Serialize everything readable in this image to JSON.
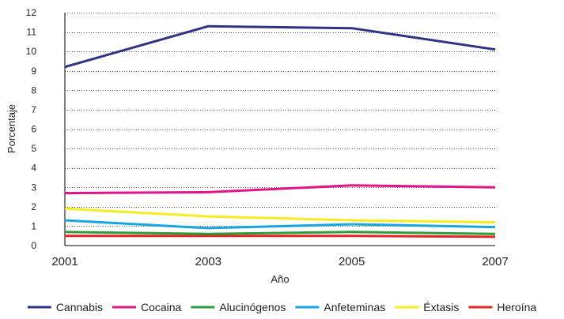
{
  "chart_data": {
    "type": "line",
    "title": "",
    "xlabel": "Año",
    "ylabel": "Porcentaje",
    "x": [
      "2001",
      "2003",
      "2005",
      "2007"
    ],
    "ylim": [
      0,
      12
    ],
    "yticks": [
      0,
      1,
      2,
      3,
      4,
      5,
      6,
      7,
      8,
      9,
      10,
      11,
      12
    ],
    "grid": "horizontal-dotted",
    "legend_position": "bottom",
    "series": [
      {
        "name": "Cannabis",
        "color": "#2e3383",
        "values": [
          9.2,
          11.3,
          11.2,
          10.1
        ]
      },
      {
        "name": "Cocaina",
        "color": "#e2148a",
        "values": [
          2.7,
          2.75,
          3.1,
          3.0
        ]
      },
      {
        "name": "Alucinógenos",
        "color": "#2e9b3c",
        "values": [
          0.7,
          0.6,
          0.7,
          0.6
        ]
      },
      {
        "name": "Anfeteminas",
        "color": "#17a6e0",
        "values": [
          1.3,
          0.9,
          1.1,
          0.95
        ]
      },
      {
        "name": "Éxtasis",
        "color": "#f5ed1f",
        "values": [
          1.9,
          1.5,
          1.3,
          1.2
        ]
      },
      {
        "name": "Heroína",
        "color": "#e52421",
        "values": [
          0.5,
          0.5,
          0.5,
          0.45
        ]
      }
    ]
  }
}
